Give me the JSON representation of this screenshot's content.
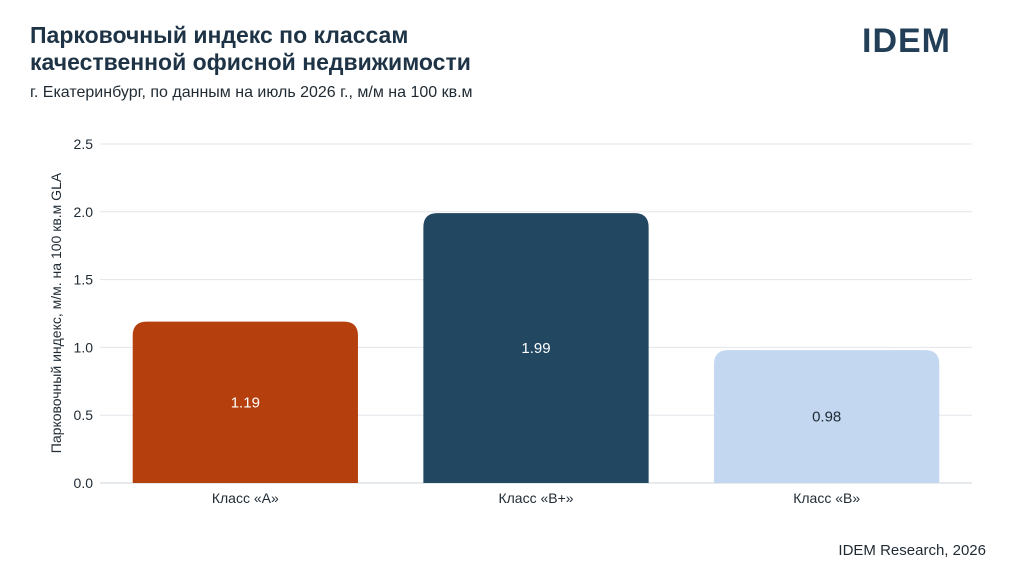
{
  "header": {
    "title_line1": "Парковочный индекс по классам",
    "title_line2": "качественной офисной недвижимости",
    "subtitle": "г. Екатеринбург, по данным на июль 2026 г., м/м на 100 кв.м",
    "logo": "IDEM"
  },
  "footer": {
    "source": "IDEM Research, 2026"
  },
  "chart_data": {
    "type": "bar",
    "title": "Парковочный индекс по классам качественной офисной недвижимости",
    "subtitle": "г. Екатеринбург, по данным на июль 2026 г., м/м на 100 кв.м",
    "xlabel": "",
    "ylabel": "Парковочный индекс, м/м. на 100 кв.м GLA",
    "categories": [
      "Класс «А»",
      "Класс «В+»",
      "Класс «В»"
    ],
    "values": [
      1.19,
      1.99,
      0.98
    ],
    "value_labels": [
      "1.19",
      "1.99",
      "0.98"
    ],
    "ylim": [
      0,
      2.5
    ],
    "yticks": [
      0,
      0.5,
      1.0,
      1.5,
      2.0,
      2.5
    ],
    "ytick_labels": [
      "0.0",
      "0.5",
      "1.0",
      "1.5",
      "2.0",
      "2.5"
    ],
    "colors": [
      "#b5400e",
      "#224761",
      "#c3d8f0"
    ],
    "label_colors": [
      "#ffffff",
      "#ffffff",
      "#1f2a33"
    ],
    "grid": true,
    "legend": "none"
  }
}
